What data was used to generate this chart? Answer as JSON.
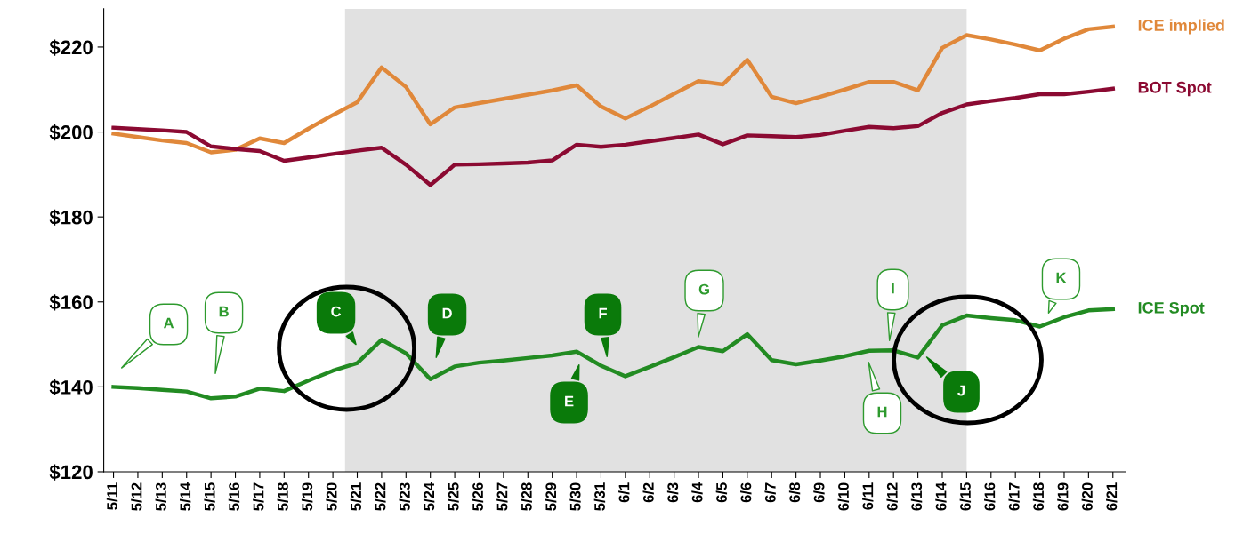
{
  "chart_data": {
    "type": "line",
    "categories": [
      "5/11",
      "5/12",
      "5/13",
      "5/14",
      "5/15",
      "5/16",
      "5/17",
      "5/18",
      "5/19",
      "5/20",
      "5/21",
      "5/22",
      "5/23",
      "5/24",
      "5/25",
      "5/26",
      "5/27",
      "5/28",
      "5/29",
      "5/30",
      "5/31",
      "6/1",
      "6/2",
      "6/3",
      "6/4",
      "6/5",
      "6/6",
      "6/7",
      "6/8",
      "6/9",
      "6/10",
      "6/11",
      "6/12",
      "6/13",
      "6/14",
      "6/15",
      "6/16",
      "6/17",
      "6/18",
      "6/19",
      "6/20",
      "6/21"
    ],
    "series": [
      {
        "name": "ICE implied",
        "color": "#e0883a",
        "values": [
          199.6,
          198.8,
          198,
          197.4,
          195.2,
          195.8,
          198.5,
          197.4,
          200.8,
          204,
          207,
          215.2,
          210.6,
          201.8,
          205.8,
          206.8,
          207.8,
          208.8,
          209.8,
          211,
          206,
          203.2,
          206,
          209,
          212,
          211.2,
          217,
          208.3,
          206.8,
          208.3,
          210,
          211.8,
          211.8,
          209.8,
          219.8,
          222.8,
          221.8,
          220.6,
          219.2,
          222,
          224.2,
          224.8
        ]
      },
      {
        "name": "BOT Spot",
        "color": "#8b0a32",
        "values": [
          201,
          200.7,
          200.4,
          200,
          196.6,
          196,
          195.5,
          193.2,
          194,
          194.8,
          195.6,
          196.3,
          192.3,
          187.5,
          192.3,
          192.4,
          192.6,
          192.8,
          193.3,
          197,
          196.5,
          197,
          197.8,
          198.6,
          199.4,
          197.1,
          199.2,
          199,
          198.8,
          199.3,
          200.3,
          201.2,
          200.9,
          201.4,
          204.5,
          206.5,
          207.3,
          208,
          208.9,
          208.9,
          209.5,
          210.2
        ]
      },
      {
        "name": "ICE Spot",
        "color": "#228b22",
        "values": [
          140,
          139.7,
          139.3,
          138.9,
          137.3,
          137.7,
          139.6,
          139,
          141.5,
          143.8,
          145.6,
          151.1,
          147.9,
          141.8,
          144.8,
          145.7,
          146.2,
          146.8,
          147.4,
          148.3,
          145,
          142.5,
          144.7,
          147,
          149.4,
          148.4,
          152.4,
          146.3,
          145.3,
          146.2,
          147.2,
          148.5,
          148.6,
          146.9,
          154.5,
          156.8,
          156.2,
          155.7,
          154.2,
          156.4,
          158,
          158.3
        ]
      }
    ],
    "ylim": [
      120,
      229
    ],
    "yticks": [
      {
        "value": 120,
        "label": "$120"
      },
      {
        "value": 140,
        "label": "$140"
      },
      {
        "value": 160,
        "label": "$160"
      },
      {
        "value": 180,
        "label": "$180"
      },
      {
        "value": 200,
        "label": "$200"
      },
      {
        "value": 220,
        "label": "$220"
      }
    ],
    "bands": [
      {
        "axis": "x",
        "from": "5/21",
        "to": "6/15",
        "color": "#d9d9d9"
      }
    ],
    "annotations": [
      "A",
      "B",
      "C",
      "D",
      "E",
      "F",
      "G",
      "H",
      "I",
      "J",
      "K"
    ],
    "grid": false,
    "legend": false,
    "marker": "none",
    "line_style": "solid"
  }
}
